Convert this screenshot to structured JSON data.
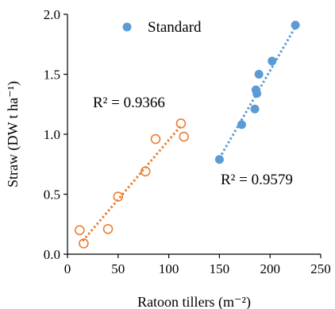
{
  "chart_data": {
    "type": "scatter",
    "xlabel": "Ratoon tillers (m⁻²)",
    "ylabel": "Straw (DW t ha⁻¹)",
    "xlim": [
      0,
      250
    ],
    "ylim": [
      0.0,
      2.0
    ],
    "x_ticks": [
      "0",
      "50",
      "100",
      "150",
      "200",
      "250"
    ],
    "y_ticks": [
      "0.0",
      "0.5",
      "1.0",
      "1.5",
      "2.0"
    ],
    "x_tick_values": [
      0,
      50,
      100,
      150,
      200,
      250
    ],
    "y_tick_values": [
      0.0,
      0.5,
      1.0,
      1.5,
      2.0
    ],
    "legend_position": "top",
    "grid": false,
    "series": [
      {
        "name": "Standard",
        "marker": "filled-circle",
        "color": "#5b9bd5",
        "x": [
          150,
          172,
          185,
          186,
          187,
          189,
          202,
          225
        ],
        "y": [
          0.79,
          1.08,
          1.21,
          1.37,
          1.34,
          1.5,
          1.61,
          1.91
        ],
        "trend_start": [
          150,
          0.8
        ],
        "trend_end": [
          226,
          1.91
        ],
        "r2_label": "R² = 0.9579"
      },
      {
        "marker": "open-circle",
        "color": "#ed7d31",
        "x": [
          12,
          16,
          40,
          50,
          77,
          87,
          112,
          115
        ],
        "y": [
          0.2,
          0.09,
          0.21,
          0.48,
          0.69,
          0.96,
          1.09,
          0.98
        ],
        "trend_start": [
          15,
          0.11
        ],
        "trend_end": [
          113,
          1.08
        ],
        "r2_label": "R² = 0.9366"
      }
    ]
  }
}
